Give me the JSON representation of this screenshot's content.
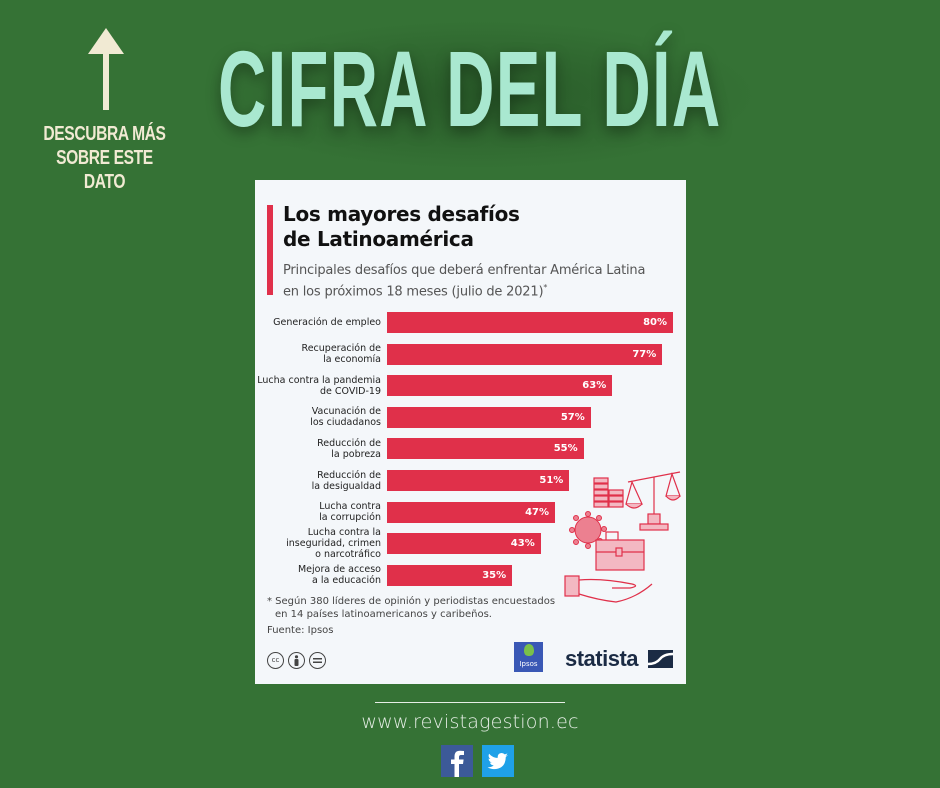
{
  "header": {
    "headline": "CIFRA DEL DÍA",
    "cta_line1": "DESCUBRA MÁS",
    "cta_line2": "SOBRE ESTE DATO",
    "arrow_icon": "arrow-up-icon"
  },
  "card": {
    "title_line1": "Los mayores desafíos",
    "title_line2": "de Latinoamérica",
    "subtitle_line1": "Principales desafíos que deberá enfrentar América Latina",
    "subtitle_line2": "en los próximos 18 meses (julio de 2021)",
    "subtitle_mark": "*",
    "footnote_line1": "* Según 380 líderes de opinión y periodistas encuestados",
    "footnote_line2": "en 14 países latinoamericanos y caribeños.",
    "source": "Fuente: Ipsos",
    "license_icons": [
      "cc-icon",
      "attribution-icon",
      "no-derivatives-icon"
    ],
    "cc_label": "cc",
    "ipsos_label": "Ipsos",
    "statista_label": "statista"
  },
  "chart_data": {
    "type": "bar",
    "orientation": "horizontal",
    "title": "Los mayores desafíos de Latinoamérica",
    "subtitle": "Principales desafíos que deberá enfrentar América Latina en los próximos 18 meses (julio de 2021)*",
    "categories": [
      [
        "Generación de empleo"
      ],
      [
        "Recuperación de",
        "la economía"
      ],
      [
        "Lucha contra la pandemia",
        "de COVID-19"
      ],
      [
        "Vacunación de",
        "los ciudadanos"
      ],
      [
        "Reducción de",
        "la pobreza"
      ],
      [
        "Reducción de",
        "la desigualdad"
      ],
      [
        "Lucha contra",
        "la corrupción"
      ],
      [
        "Lucha contra la",
        "inseguridad, crimen",
        "o narcotráfico"
      ],
      [
        "Mejora de acceso",
        "a la educación"
      ]
    ],
    "values": [
      80,
      77,
      63,
      57,
      55,
      51,
      47,
      43,
      35
    ],
    "value_labels": [
      "80%",
      "77%",
      "63%",
      "57%",
      "55%",
      "51%",
      "47%",
      "43%",
      "35%"
    ],
    "unit": "%",
    "xlim": [
      0,
      80
    ],
    "bar_color": "#e0304a",
    "grid": false,
    "legend": "none"
  },
  "footer": {
    "website": "www.revistagestion.ec",
    "social": [
      "facebook-icon",
      "twitter-icon"
    ]
  },
  "colors": {
    "background": "#357235",
    "headline": "#a9e8d0",
    "cta": "#f1ead3",
    "accent": "#e0304a",
    "card": "#f4f7fa",
    "statista": "#1b2b44",
    "facebook": "#3c5a98",
    "twitter": "#1fa1e8"
  }
}
